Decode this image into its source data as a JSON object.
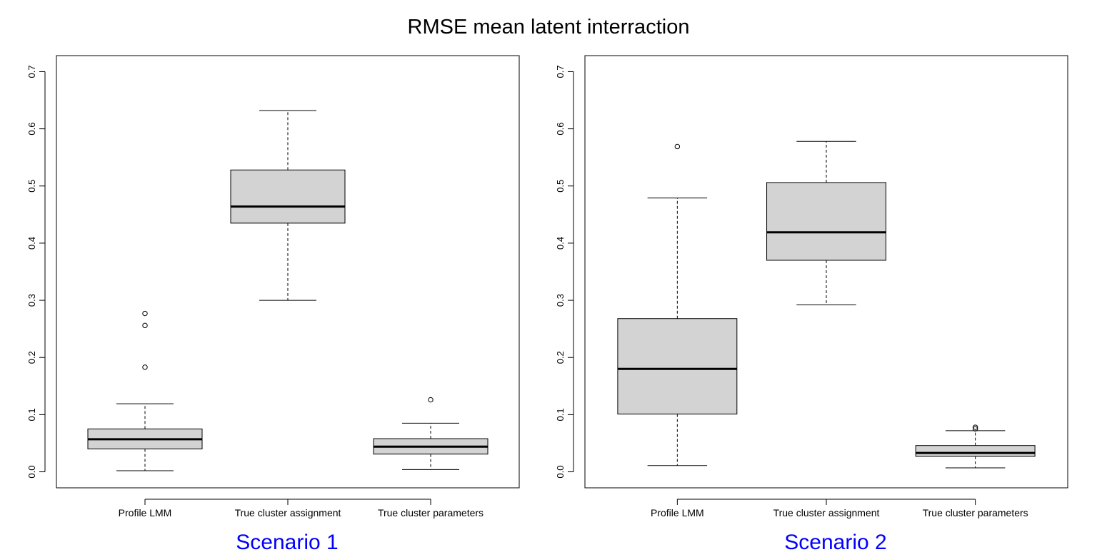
{
  "title": "RMSE mean latent interraction",
  "chart_data": [
    {
      "type": "box",
      "scenario_label": "Scenario 1",
      "categories": [
        "Profile LMM",
        "True cluster assignment",
        "True cluster parameters"
      ],
      "ylim": [
        -0.028,
        0.728
      ],
      "yticks": [
        0.0,
        0.1,
        0.2,
        0.3,
        0.4,
        0.5,
        0.6,
        0.7
      ],
      "ytick_labels": [
        "0.0",
        "0.1",
        "0.2",
        "0.3",
        "0.4",
        "0.5",
        "0.6",
        "0.7"
      ],
      "boxes": [
        {
          "min": 0.002,
          "q1": 0.04,
          "median": 0.057,
          "q3": 0.075,
          "max": 0.119,
          "outliers": [
            0.183,
            0.256,
            0.277
          ]
        },
        {
          "min": 0.3,
          "q1": 0.435,
          "median": 0.464,
          "q3": 0.528,
          "max": 0.632,
          "outliers": []
        },
        {
          "min": 0.004,
          "q1": 0.031,
          "median": 0.044,
          "q3": 0.058,
          "max": 0.085,
          "outliers": [
            0.126
          ]
        }
      ],
      "box_fill": "#d3d3d3"
    },
    {
      "type": "box",
      "scenario_label": "Scenario 2",
      "categories": [
        "Profile LMM",
        "True cluster assignment",
        "True cluster parameters"
      ],
      "ylim": [
        -0.028,
        0.728
      ],
      "yticks": [
        0.0,
        0.1,
        0.2,
        0.3,
        0.4,
        0.5,
        0.6,
        0.7
      ],
      "ytick_labels": [
        "0.0",
        "0.1",
        "0.2",
        "0.3",
        "0.4",
        "0.5",
        "0.6",
        "0.7"
      ],
      "boxes": [
        {
          "min": 0.011,
          "q1": 0.101,
          "median": 0.18,
          "q3": 0.268,
          "max": 0.479,
          "outliers": [
            0.569
          ]
        },
        {
          "min": 0.292,
          "q1": 0.37,
          "median": 0.419,
          "q3": 0.506,
          "max": 0.578,
          "outliers": []
        },
        {
          "min": 0.007,
          "q1": 0.027,
          "median": 0.033,
          "q3": 0.046,
          "max": 0.072,
          "outliers": [
            0.075,
            0.078
          ]
        }
      ],
      "box_fill": "#d3d3d3"
    }
  ]
}
